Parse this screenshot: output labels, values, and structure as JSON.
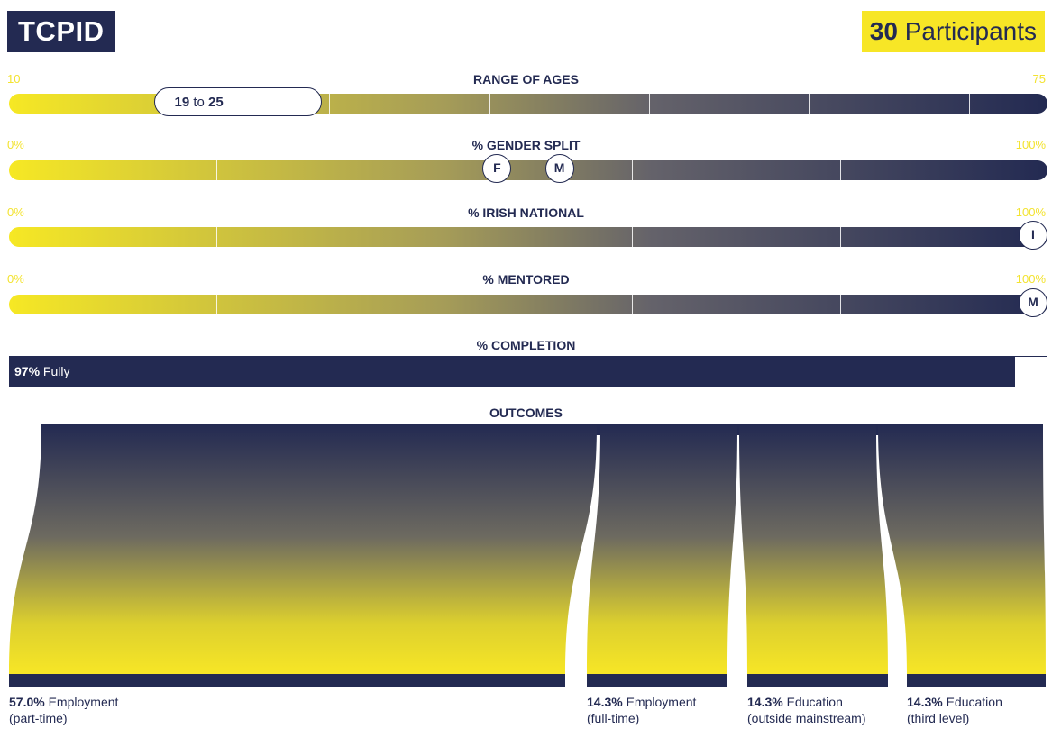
{
  "header": {
    "logo_text": "TCPID",
    "participants_count": "30",
    "participants_label": "Participants"
  },
  "colors": {
    "navy": "#232a52",
    "yellow": "#f7e626",
    "white": "#ffffff"
  },
  "chart_data": [
    {
      "type": "range-bar",
      "title": "RANGE OF AGES",
      "min_label": "10",
      "max_label": "75",
      "xlim": [
        10,
        75
      ],
      "range": [
        19,
        25
      ],
      "range_low": "19",
      "range_joiner": "to",
      "range_high": "25"
    },
    {
      "type": "marker-bar",
      "title": "% GENDER SPLIT",
      "min_label": "0%",
      "max_label": "100%",
      "xlim": [
        0,
        100
      ],
      "markers": [
        {
          "label": "F",
          "value": 47
        },
        {
          "label": "M",
          "value": 53
        }
      ]
    },
    {
      "type": "marker-bar",
      "title": "% IRISH NATIONAL",
      "min_label": "0%",
      "max_label": "100%",
      "xlim": [
        0,
        100
      ],
      "markers": [
        {
          "label": "I",
          "value": 100
        }
      ]
    },
    {
      "type": "marker-bar",
      "title": "% MENTORED",
      "min_label": "0%",
      "max_label": "100%",
      "xlim": [
        0,
        100
      ],
      "markers": [
        {
          "label": "M",
          "value": 100
        }
      ]
    },
    {
      "type": "progress",
      "title": "% COMPLETION",
      "value": 97,
      "value_text": "97%",
      "label": "Fully"
    },
    {
      "type": "sankey",
      "title": "OUTCOMES",
      "categories": [
        {
          "percent": 57.0,
          "percent_text": "57.0%",
          "line1": "Employment",
          "line2": "(part-time)"
        },
        {
          "percent": 14.3,
          "percent_text": "14.3%",
          "line1": "Employment",
          "line2": "(full-time)"
        },
        {
          "percent": 14.3,
          "percent_text": "14.3%",
          "line1": "Education",
          "line2": "(outside mainstream)"
        },
        {
          "percent": 14.3,
          "percent_text": "14.3%",
          "line1": "Education",
          "line2": "(third level)"
        }
      ]
    }
  ]
}
